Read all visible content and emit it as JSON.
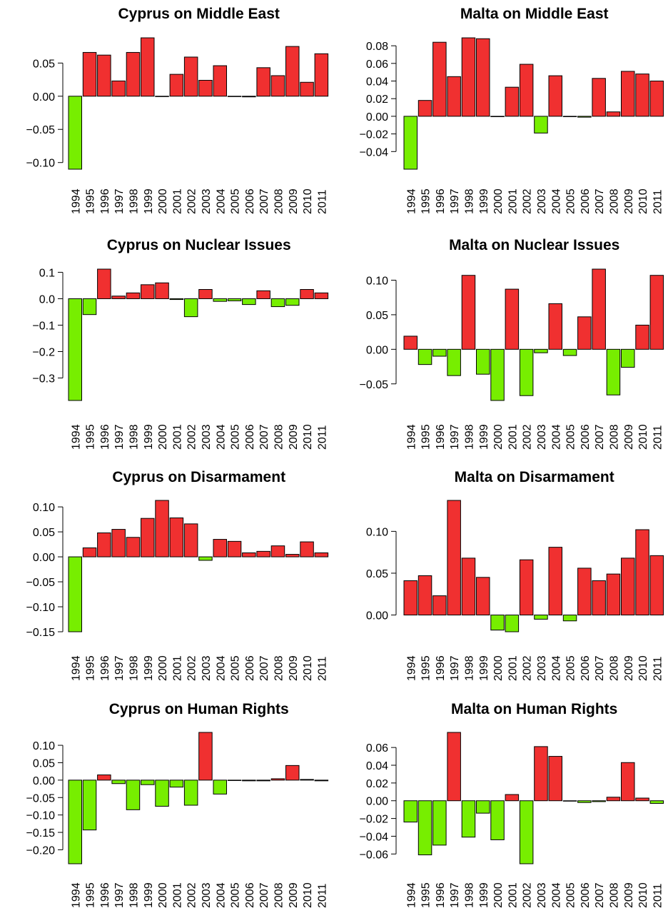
{
  "colors": {
    "positive": "#f03030",
    "negative": "#77ee00",
    "stroke": "#000000"
  },
  "years": [
    "1994",
    "1995",
    "1996",
    "1997",
    "1998",
    "1999",
    "2000",
    "2001",
    "2002",
    "2003",
    "2004",
    "2005",
    "2006",
    "2007",
    "2008",
    "2009",
    "2010",
    "2011"
  ],
  "chart_data": [
    {
      "type": "bar",
      "title": "Cyprus on Middle East",
      "categories": [
        "1994",
        "1995",
        "1996",
        "1997",
        "1998",
        "1999",
        "2000",
        "2001",
        "2002",
        "2003",
        "2004",
        "2005",
        "2006",
        "2007",
        "2008",
        "2009",
        "2010",
        "2011"
      ],
      "values": [
        -0.11,
        0.066,
        0.062,
        0.023,
        0.066,
        0.088,
        0.0,
        0.033,
        0.059,
        0.024,
        0.046,
        0.0,
        -0.001,
        0.043,
        0.031,
        0.075,
        0.021,
        0.064
      ],
      "yticks": [
        -0.1,
        -0.05,
        0.0,
        0.05
      ],
      "ytick_labels": [
        "−0.10",
        "−0.05",
        "0.00",
        "0.05"
      ],
      "ylim": [
        -0.11,
        0.088
      ]
    },
    {
      "type": "bar",
      "title": "Malta on Middle East",
      "categories": [
        "1994",
        "1995",
        "1996",
        "1997",
        "1998",
        "1999",
        "2000",
        "2001",
        "2002",
        "2003",
        "2004",
        "2005",
        "2006",
        "2007",
        "2008",
        "2009",
        "2010",
        "2011"
      ],
      "values": [
        -0.06,
        0.018,
        0.084,
        0.045,
        0.089,
        0.088,
        0.0,
        0.033,
        0.059,
        -0.019,
        0.046,
        0.0,
        -0.001,
        0.043,
        0.005,
        0.051,
        0.048,
        0.04
      ],
      "yticks": [
        -0.04,
        -0.02,
        0.0,
        0.02,
        0.04,
        0.06,
        0.08
      ],
      "ytick_labels": [
        "−0.04",
        "−0.02",
        "0.00",
        "0.02",
        "0.04",
        "0.06",
        "0.08"
      ],
      "ylim": [
        -0.06,
        0.089
      ]
    },
    {
      "type": "bar",
      "title": "Cyprus on Nuclear Issues",
      "categories": [
        "1994",
        "1995",
        "1996",
        "1997",
        "1998",
        "1999",
        "2000",
        "2001",
        "2002",
        "2003",
        "2004",
        "2005",
        "2006",
        "2007",
        "2008",
        "2009",
        "2010",
        "2011"
      ],
      "values": [
        -0.385,
        -0.06,
        0.112,
        0.01,
        0.022,
        0.053,
        0.06,
        -0.003,
        -0.068,
        0.035,
        -0.01,
        -0.008,
        -0.022,
        0.03,
        -0.03,
        -0.025,
        0.035,
        0.022
      ],
      "yticks": [
        -0.3,
        -0.2,
        -0.1,
        0.0,
        0.1
      ],
      "ytick_labels": [
        "−0.3",
        "−0.2",
        "−0.1",
        "0.0",
        "0.1"
      ],
      "ylim": [
        -0.385,
        0.112
      ]
    },
    {
      "type": "bar",
      "title": "Malta on Nuclear Issues",
      "categories": [
        "1994",
        "1995",
        "1996",
        "1997",
        "1998",
        "1999",
        "2000",
        "2001",
        "2002",
        "2003",
        "2004",
        "2005",
        "2006",
        "2007",
        "2008",
        "2009",
        "2010",
        "2011"
      ],
      "values": [
        0.019,
        -0.022,
        -0.01,
        -0.038,
        0.107,
        -0.036,
        -0.074,
        0.087,
        -0.067,
        -0.005,
        0.066,
        -0.009,
        0.047,
        0.116,
        -0.066,
        -0.026,
        0.035,
        0.107
      ],
      "yticks": [
        -0.05,
        0.0,
        0.05,
        0.1
      ],
      "ytick_labels": [
        "−0.05",
        "0.00",
        "0.05",
        "0.10"
      ],
      "ylim": [
        -0.074,
        0.116
      ]
    },
    {
      "type": "bar",
      "title": "Cyprus on Disarmament",
      "categories": [
        "1994",
        "1995",
        "1996",
        "1997",
        "1998",
        "1999",
        "2000",
        "2001",
        "2002",
        "2003",
        "2004",
        "2005",
        "2006",
        "2007",
        "2008",
        "2009",
        "2010",
        "2011"
      ],
      "values": [
        -0.15,
        0.018,
        0.048,
        0.055,
        0.039,
        0.077,
        0.113,
        0.078,
        0.066,
        -0.007,
        0.035,
        0.031,
        0.008,
        0.011,
        0.022,
        0.005,
        0.03,
        0.008
      ],
      "yticks": [
        -0.15,
        -0.1,
        -0.05,
        0.0,
        0.05,
        0.1
      ],
      "ytick_labels": [
        "−0.15",
        "−0.10",
        "−0.05",
        "0.00",
        "0.05",
        "0.10"
      ],
      "ylim": [
        -0.15,
        0.113
      ]
    },
    {
      "type": "bar",
      "title": "Malta on Disarmament",
      "categories": [
        "1994",
        "1995",
        "1996",
        "1997",
        "1998",
        "1999",
        "2000",
        "2001",
        "2002",
        "2003",
        "2004",
        "2005",
        "2006",
        "2007",
        "2008",
        "2009",
        "2010",
        "2011"
      ],
      "values": [
        0.041,
        0.047,
        0.023,
        0.137,
        0.068,
        0.045,
        -0.018,
        -0.02,
        0.066,
        -0.005,
        0.081,
        -0.007,
        0.056,
        0.041,
        0.049,
        0.068,
        0.102,
        0.071
      ],
      "yticks": [
        0.0,
        0.05,
        0.1
      ],
      "ytick_labels": [
        "0.00",
        "0.05",
        "0.10"
      ],
      "ylim": [
        -0.02,
        0.137
      ]
    },
    {
      "type": "bar",
      "title": "Cyprus on Human Rights",
      "categories": [
        "1994",
        "1995",
        "1996",
        "1997",
        "1998",
        "1999",
        "2000",
        "2001",
        "2002",
        "2003",
        "2004",
        "2005",
        "2006",
        "2007",
        "2008",
        "2009",
        "2010",
        "2011"
      ],
      "values": [
        -0.24,
        -0.143,
        0.015,
        -0.01,
        -0.085,
        -0.013,
        -0.075,
        -0.02,
        -0.072,
        0.137,
        -0.04,
        0.0,
        -0.002,
        -0.002,
        0.004,
        0.042,
        0.002,
        -0.002
      ],
      "yticks": [
        -0.2,
        -0.15,
        -0.1,
        -0.05,
        0.0,
        0.05,
        0.1
      ],
      "ytick_labels": [
        "−0.20",
        "−0.15",
        "−0.10",
        "−0.05",
        "0.00",
        "0.05",
        "0.10"
      ],
      "ylim": [
        -0.24,
        0.137
      ]
    },
    {
      "type": "bar",
      "title": "Malta on Human Rights",
      "categories": [
        "1994",
        "1995",
        "1996",
        "1997",
        "1998",
        "1999",
        "2000",
        "2001",
        "2002",
        "2003",
        "2004",
        "2005",
        "2006",
        "2007",
        "2008",
        "2009",
        "2010",
        "2011"
      ],
      "values": [
        -0.024,
        -0.061,
        -0.05,
        0.077,
        -0.041,
        -0.014,
        -0.044,
        0.007,
        -0.071,
        0.061,
        0.05,
        0.0,
        -0.002,
        -0.001,
        0.004,
        0.043,
        0.003,
        -0.003
      ],
      "yticks": [
        -0.06,
        -0.04,
        -0.02,
        0.0,
        0.02,
        0.04,
        0.06
      ],
      "ytick_labels": [
        "−0.06",
        "−0.04",
        "−0.02",
        "0.00",
        "0.02",
        "0.04",
        "0.06"
      ],
      "ylim": [
        -0.071,
        0.077
      ]
    }
  ]
}
